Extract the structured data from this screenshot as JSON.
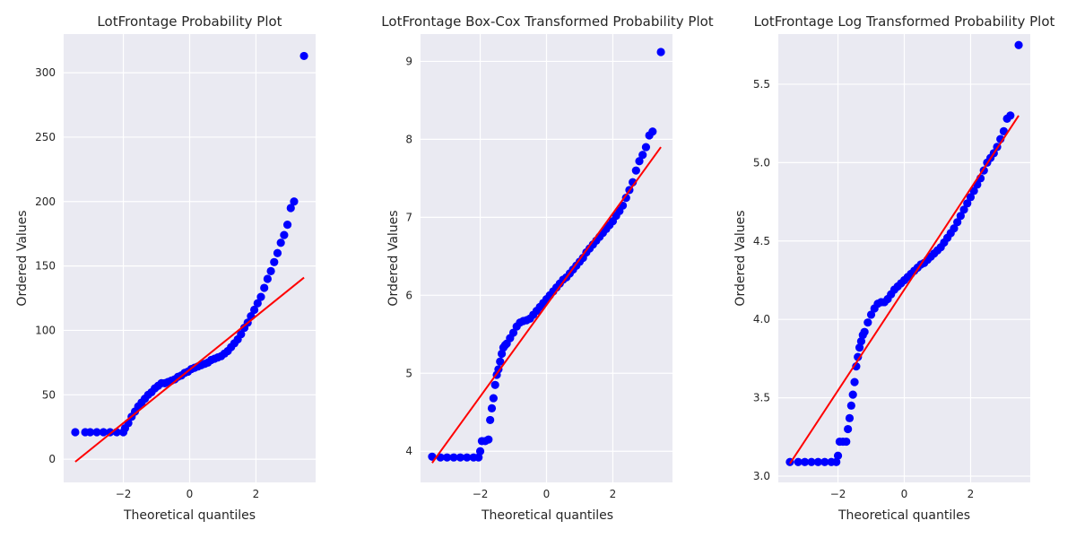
{
  "figure": {
    "background": "#ffffff",
    "axes_background": "#eaeaf2",
    "grid_color": "#ffffff",
    "point_color": "#0000ff",
    "line_color": "#ff0000"
  },
  "chart_data": [
    {
      "type": "scatter",
      "title": "LotFrontage Probability Plot",
      "xlabel": "Theoretical quantiles",
      "ylabel": "Ordered Values",
      "grid": true,
      "xlim": [
        -3.8,
        3.8
      ],
      "ylim": [
        -18,
        330
      ],
      "xticks": [
        -2,
        0,
        2
      ],
      "xtick_labels": [
        "−2",
        "0",
        "2"
      ],
      "yticks": [
        0,
        50,
        100,
        150,
        200,
        250,
        300
      ],
      "ytick_labels": [
        "0",
        "50",
        "100",
        "150",
        "200",
        "250",
        "300"
      ],
      "fit_line": {
        "x": [
          -3.45,
          3.45
        ],
        "y": [
          -2,
          141
        ]
      },
      "points": {
        "x": [
          -3.45,
          -3.15,
          -3.0,
          -2.8,
          -2.6,
          -2.4,
          -2.2,
          -2.0,
          -1.95,
          -1.85,
          -1.75,
          -1.65,
          -1.55,
          -1.45,
          -1.35,
          -1.25,
          -1.15,
          -1.05,
          -0.95,
          -0.85,
          -0.75,
          -0.65,
          -0.55,
          -0.45,
          -0.35,
          -0.25,
          -0.15,
          -0.05,
          0.05,
          0.15,
          0.25,
          0.35,
          0.45,
          0.55,
          0.65,
          0.75,
          0.85,
          0.95,
          1.05,
          1.15,
          1.25,
          1.35,
          1.45,
          1.55,
          1.65,
          1.75,
          1.85,
          1.95,
          2.05,
          2.15,
          2.25,
          2.35,
          2.45,
          2.55,
          2.65,
          2.75,
          2.85,
          2.95,
          3.05,
          3.15,
          3.45
        ],
        "y": [
          21,
          21,
          21,
          21,
          21,
          21,
          21,
          21,
          24,
          28,
          33,
          37,
          41,
          44,
          47,
          50,
          52,
          55,
          57,
          59,
          59,
          60,
          61,
          62,
          64,
          65,
          67,
          68,
          70,
          71,
          72,
          73,
          74,
          75,
          77,
          78,
          79,
          80,
          82,
          84,
          87,
          90,
          93,
          97,
          102,
          106,
          111,
          116,
          121,
          126,
          133,
          140,
          146,
          153,
          160,
          168,
          174,
          182,
          195,
          200,
          313
        ]
      }
    },
    {
      "type": "scatter",
      "title": "LotFrontage Box-Cox Transformed Probability Plot",
      "xlabel": "Theoretical quantiles",
      "ylabel": "Ordered Values",
      "grid": true,
      "xlim": [
        -3.8,
        3.8
      ],
      "ylim": [
        3.6,
        9.35
      ],
      "xticks": [
        -2,
        0,
        2
      ],
      "xtick_labels": [
        "−2",
        "0",
        "2"
      ],
      "yticks": [
        4,
        5,
        6,
        7,
        8,
        9
      ],
      "ytick_labels": [
        "4",
        "5",
        "6",
        "7",
        "8",
        "9"
      ],
      "fit_line": {
        "x": [
          -3.45,
          3.45
        ],
        "y": [
          3.85,
          7.9
        ]
      },
      "points": {
        "x": [
          -3.45,
          -3.2,
          -3.0,
          -2.8,
          -2.6,
          -2.4,
          -2.2,
          -2.05,
          -2.0,
          -1.95,
          -1.85,
          -1.75,
          -1.7,
          -1.65,
          -1.6,
          -1.55,
          -1.5,
          -1.45,
          -1.4,
          -1.35,
          -1.3,
          -1.25,
          -1.2,
          -1.1,
          -1.0,
          -0.9,
          -0.8,
          -0.7,
          -0.6,
          -0.5,
          -0.4,
          -0.3,
          -0.2,
          -0.1,
          0.0,
          0.1,
          0.2,
          0.3,
          0.4,
          0.5,
          0.6,
          0.7,
          0.8,
          0.9,
          1.0,
          1.1,
          1.2,
          1.3,
          1.4,
          1.5,
          1.6,
          1.7,
          1.8,
          1.9,
          2.0,
          2.1,
          2.2,
          2.3,
          2.4,
          2.5,
          2.6,
          2.7,
          2.8,
          2.9,
          3.0,
          3.1,
          3.2,
          3.45
        ],
        "y": [
          3.93,
          3.92,
          3.92,
          3.92,
          3.92,
          3.92,
          3.92,
          3.92,
          4.0,
          4.13,
          4.13,
          4.15,
          4.4,
          4.55,
          4.68,
          4.85,
          4.98,
          5.05,
          5.15,
          5.25,
          5.33,
          5.36,
          5.38,
          5.45,
          5.52,
          5.6,
          5.65,
          5.67,
          5.68,
          5.7,
          5.75,
          5.8,
          5.85,
          5.9,
          5.95,
          6.0,
          6.05,
          6.1,
          6.15,
          6.2,
          6.23,
          6.28,
          6.33,
          6.38,
          6.43,
          6.48,
          6.55,
          6.6,
          6.65,
          6.7,
          6.75,
          6.8,
          6.85,
          6.9,
          6.95,
          7.02,
          7.08,
          7.15,
          7.25,
          7.35,
          7.45,
          7.6,
          7.72,
          7.8,
          7.9,
          8.05,
          8.1,
          9.12
        ]
      }
    },
    {
      "type": "scatter",
      "title": "LotFrontage Log Transformed Probability Plot",
      "xlabel": "Theoretical quantiles",
      "ylabel": "Ordered Values",
      "grid": true,
      "xlim": [
        -3.8,
        3.8
      ],
      "ylim": [
        2.96,
        5.82
      ],
      "xticks": [
        -2,
        0,
        2
      ],
      "xtick_labels": [
        "−2",
        "0",
        "2"
      ],
      "yticks": [
        3.0,
        3.5,
        4.0,
        4.5,
        5.0,
        5.5
      ],
      "ytick_labels": [
        "3.0",
        "3.5",
        "4.0",
        "4.5",
        "5.0",
        "5.5"
      ],
      "fit_line": {
        "x": [
          -3.45,
          3.45
        ],
        "y": [
          3.08,
          5.3
        ]
      },
      "points": {
        "x": [
          -3.45,
          -3.2,
          -3.0,
          -2.8,
          -2.6,
          -2.4,
          -2.2,
          -2.05,
          -2.0,
          -1.95,
          -1.85,
          -1.75,
          -1.7,
          -1.65,
          -1.6,
          -1.55,
          -1.5,
          -1.45,
          -1.4,
          -1.35,
          -1.3,
          -1.25,
          -1.2,
          -1.1,
          -1.0,
          -0.9,
          -0.8,
          -0.7,
          -0.6,
          -0.5,
          -0.4,
          -0.3,
          -0.2,
          -0.1,
          0.0,
          0.1,
          0.2,
          0.3,
          0.4,
          0.5,
          0.6,
          0.7,
          0.8,
          0.9,
          1.0,
          1.1,
          1.2,
          1.3,
          1.4,
          1.5,
          1.6,
          1.7,
          1.8,
          1.9,
          2.0,
          2.1,
          2.2,
          2.3,
          2.4,
          2.5,
          2.6,
          2.7,
          2.8,
          2.9,
          3.0,
          3.1,
          3.2,
          3.45
        ],
        "y": [
          3.09,
          3.09,
          3.09,
          3.09,
          3.09,
          3.09,
          3.09,
          3.09,
          3.13,
          3.22,
          3.22,
          3.22,
          3.3,
          3.37,
          3.45,
          3.52,
          3.6,
          3.7,
          3.76,
          3.82,
          3.86,
          3.9,
          3.92,
          3.98,
          4.03,
          4.07,
          4.1,
          4.11,
          4.11,
          4.13,
          4.16,
          4.19,
          4.21,
          4.23,
          4.25,
          4.27,
          4.29,
          4.31,
          4.33,
          4.35,
          4.36,
          4.38,
          4.4,
          4.42,
          4.44,
          4.46,
          4.49,
          4.52,
          4.55,
          4.58,
          4.62,
          4.66,
          4.7,
          4.74,
          4.78,
          4.82,
          4.86,
          4.9,
          4.95,
          5.0,
          5.03,
          5.06,
          5.1,
          5.15,
          5.2,
          5.28,
          5.3,
          5.75
        ]
      }
    }
  ]
}
